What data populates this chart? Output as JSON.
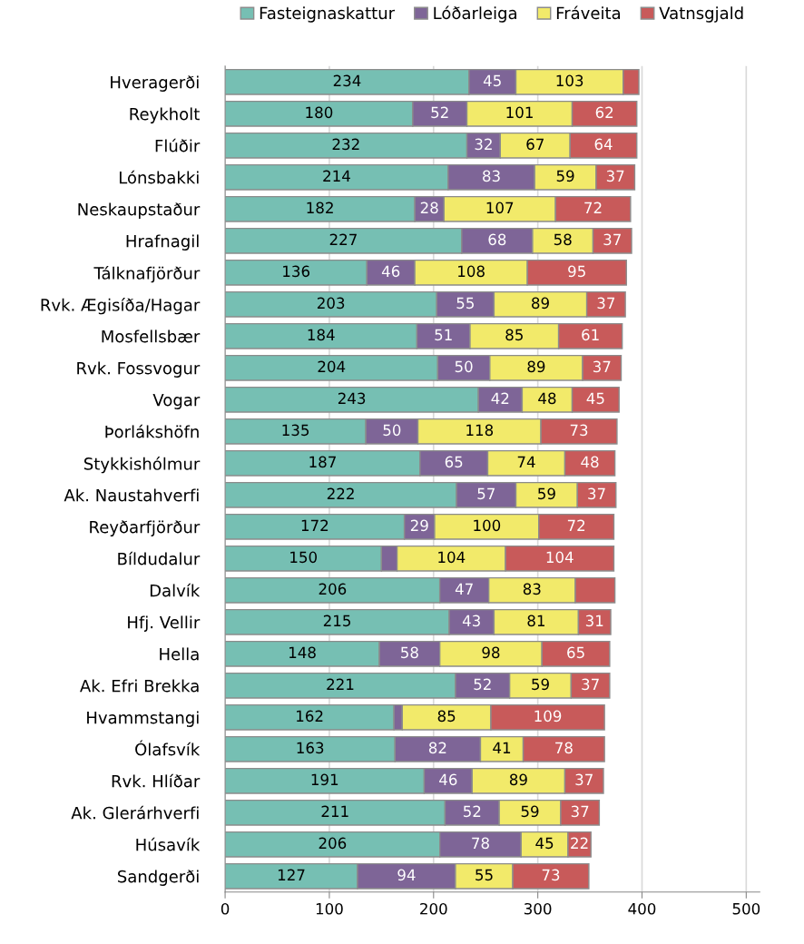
{
  "chart_data": {
    "type": "bar",
    "orientation": "horizontal",
    "stacked": true,
    "categories": [
      "Hveragerði",
      "Reykholt",
      "Flúðir",
      "Lónsbakki",
      "Neskaupstaður",
      "Hrafnagil",
      "Tálknafjörður",
      "Rvk. Ægisíða/Hagar",
      "Mosfellsbær",
      "Rvk. Fossvogur",
      "Vogar",
      "Þorlákshöfn",
      "Stykkishólmur",
      "Ak. Naustahverfi",
      "Reyðarfjörður",
      "Bíldudalur",
      "Dalvík",
      "Hfj. Vellir",
      "Hella",
      "Ak. Efri Brekka",
      "Hvammstangi",
      "Ólafsvík",
      "Rvk. Hlíðar",
      "Ak. Glerárhverfi",
      "Húsavík",
      "Sandgerði"
    ],
    "series": [
      {
        "name": "Fasteignaskattur",
        "color": "#76bfb3",
        "values": [
          234,
          180,
          232,
          214,
          182,
          227,
          136,
          203,
          184,
          204,
          243,
          135,
          187,
          222,
          172,
          150,
          206,
          215,
          148,
          221,
          162,
          163,
          191,
          211,
          206,
          127
        ],
        "value_labels": [
          "234",
          "180",
          "232",
          "214",
          "182",
          "227",
          "136",
          "203",
          "184",
          "204",
          "243",
          "135",
          "187",
          "222",
          "172",
          "150",
          "206",
          "215",
          "148",
          "221",
          "162",
          "163",
          "191",
          "211",
          "206",
          "127"
        ]
      },
      {
        "name": "Lóðarleiga",
        "color": "#7e6597",
        "values": [
          45,
          52,
          32,
          83,
          28,
          68,
          46,
          55,
          51,
          50,
          42,
          50,
          65,
          57,
          29,
          15,
          47,
          43,
          58,
          52,
          8,
          82,
          46,
          52,
          78,
          94
        ],
        "value_labels": [
          "45",
          "52",
          "32",
          "83",
          "28",
          "68",
          "46",
          "55",
          "51",
          "50",
          "42",
          "50",
          "65",
          "57",
          "29",
          null,
          "47",
          "43",
          "58",
          "52",
          null,
          "82",
          "46",
          "52",
          "78",
          "94"
        ]
      },
      {
        "name": "Fráveita",
        "color": "#f2ea6a",
        "values": [
          103,
          101,
          67,
          59,
          107,
          58,
          108,
          89,
          85,
          89,
          48,
          118,
          74,
          59,
          100,
          104,
          83,
          81,
          98,
          59,
          85,
          41,
          89,
          59,
          45,
          55
        ],
        "value_labels": [
          "103",
          "101",
          "67",
          "59",
          "107",
          "58",
          "108",
          "89",
          "85",
          "89",
          "48",
          "118",
          "74",
          "59",
          "100",
          "104",
          "83",
          "81",
          "98",
          "59",
          "85",
          "41",
          "89",
          "59",
          "45",
          "55"
        ]
      },
      {
        "name": "Vatnsgjald",
        "color": "#c85a5a",
        "values": [
          15,
          62,
          64,
          37,
          72,
          37,
          95,
          37,
          61,
          37,
          45,
          73,
          48,
          37,
          72,
          104,
          38,
          31,
          65,
          37,
          109,
          78,
          37,
          37,
          22,
          73
        ],
        "value_labels": [
          null,
          "62",
          "64",
          "37",
          "72",
          "37",
          "95",
          "37",
          "61",
          "37",
          "45",
          "73",
          "48",
          "37",
          "72",
          "104",
          null,
          "31",
          "65",
          "37",
          "109",
          "78",
          "37",
          "37",
          "22",
          "73"
        ]
      }
    ],
    "xlim": [
      0,
      513
    ],
    "xticks": [
      0,
      100,
      200,
      300,
      400,
      500
    ],
    "grid": "x",
    "legend": "top"
  }
}
